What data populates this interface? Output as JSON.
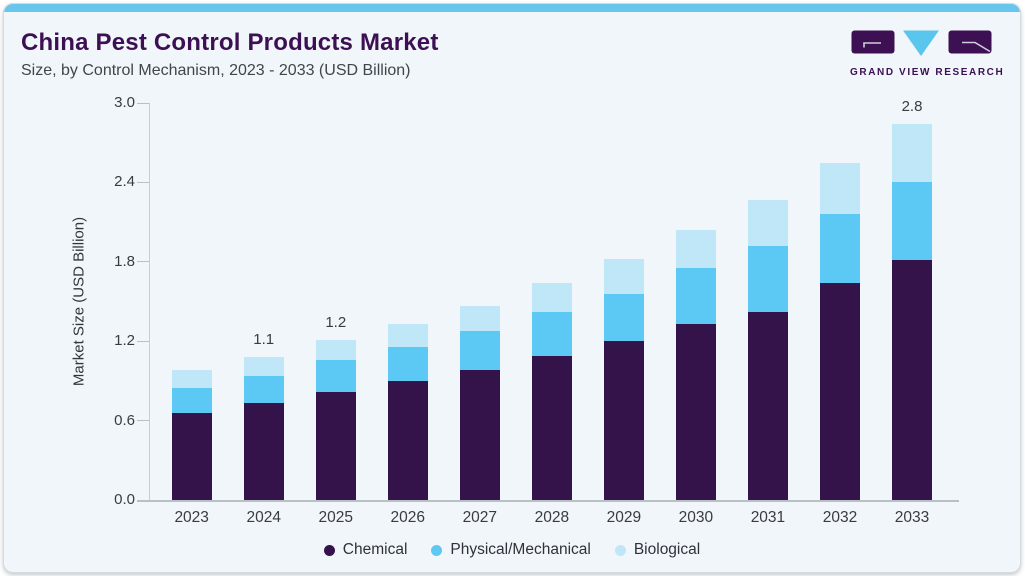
{
  "header": {
    "title": "China Pest Control Products Market",
    "subtitle": "Size, by Control Mechanism, 2023 - 2033 (USD Billion)"
  },
  "logo": {
    "text": "GRAND VIEW RESEARCH"
  },
  "colors": {
    "accent_topbar": "#68c6ec",
    "title_text": "#3c1053",
    "card_background": "#f1f6fa",
    "axis_text": "#3a3b42",
    "chemical": "#331349",
    "physical_mechanical": "#5bc9f3",
    "biological": "#c0e7f8"
  },
  "chart_data": {
    "type": "bar",
    "stacked": true,
    "title": "China Pest Control Products Market Size, by Control Mechanism, 2023 - 2033 (USD Billion)",
    "xlabel": "",
    "ylabel": "Market Size (USD Billion)",
    "categories": [
      "2023",
      "2024",
      "2025",
      "2026",
      "2027",
      "2028",
      "2029",
      "2030",
      "2031",
      "2032",
      "2033"
    ],
    "series": [
      {
        "name": "Chemical",
        "color": "#331349",
        "values": [
          0.66,
          0.73,
          0.82,
          0.9,
          0.98,
          1.09,
          1.2,
          1.33,
          1.42,
          1.64,
          1.81
        ]
      },
      {
        "name": "Physical/Mechanical",
        "color": "#5bc9f3",
        "values": [
          0.19,
          0.21,
          0.24,
          0.26,
          0.3,
          0.33,
          0.36,
          0.42,
          0.5,
          0.52,
          0.59
        ]
      },
      {
        "name": "Biological",
        "color": "#c0e7f8",
        "values": [
          0.13,
          0.14,
          0.15,
          0.17,
          0.19,
          0.22,
          0.26,
          0.29,
          0.35,
          0.39,
          0.44
        ]
      }
    ],
    "bar_total_labels": [
      "",
      "1.1",
      "1.2",
      "",
      "",
      "",
      "",
      "",
      "",
      "",
      "2.8"
    ],
    "yticks": [
      0,
      0.6,
      1.2,
      1.8,
      2.4,
      3.0
    ],
    "ylim": [
      0,
      3.0
    ],
    "grid": false,
    "legend_position": "bottom"
  }
}
